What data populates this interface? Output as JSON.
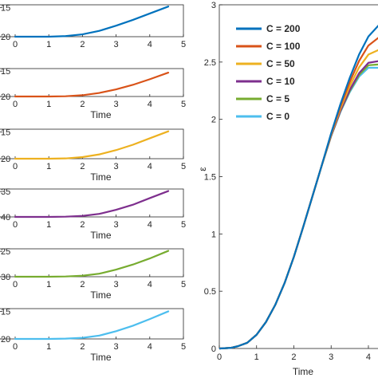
{
  "chart_data": [
    {
      "type": "line",
      "xlabel": "",
      "ylabel": "",
      "xlim": [
        0,
        5
      ],
      "x_ticks": [
        "0",
        "1",
        "2",
        "3",
        "4",
        "5"
      ],
      "y_ticks": [
        "20",
        "15"
      ],
      "ylim": [
        -20,
        -14.5
      ],
      "color": "#0072BD",
      "series": [
        {
          "x": [
            0,
            1,
            1.5,
            2,
            2.5,
            3,
            3.5,
            4,
            4.55
          ],
          "y": [
            -20,
            -20,
            -19.9,
            -19.6,
            -19.0,
            -18.1,
            -17.1,
            -16.0,
            -14.8
          ]
        }
      ]
    },
    {
      "type": "line",
      "xlabel": "Time",
      "ylabel": "",
      "xlim": [
        0,
        5
      ],
      "x_ticks": [
        "0",
        "1",
        "2",
        "3",
        "4",
        "5"
      ],
      "y_ticks": [
        "20",
        "15"
      ],
      "ylim": [
        -20,
        -14.5
      ],
      "color": "#D95319",
      "series": [
        {
          "x": [
            0,
            1,
            1.5,
            2,
            2.5,
            3,
            3.5,
            4,
            4.55
          ],
          "y": [
            -20,
            -20,
            -19.95,
            -19.75,
            -19.3,
            -18.6,
            -17.7,
            -16.6,
            -15.3
          ]
        }
      ]
    },
    {
      "type": "line",
      "xlabel": "Time",
      "ylabel": "",
      "xlim": [
        0,
        5
      ],
      "x_ticks": [
        "0",
        "1",
        "2",
        "3",
        "4",
        "5"
      ],
      "y_ticks": [
        "20",
        "15"
      ],
      "ylim": [
        -20,
        -14.5
      ],
      "color": "#EDB120",
      "series": [
        {
          "x": [
            0,
            1,
            1.5,
            2,
            2.5,
            3,
            3.5,
            4,
            4.55
          ],
          "y": [
            -20,
            -20,
            -19.95,
            -19.7,
            -19.2,
            -18.4,
            -17.4,
            -16.2,
            -14.9
          ]
        }
      ]
    },
    {
      "type": "line",
      "xlabel": "Time",
      "ylabel": "",
      "xlim": [
        0,
        5
      ],
      "x_ticks": [
        "0",
        "1",
        "2",
        "3",
        "4",
        "5"
      ],
      "y_ticks": [
        "40",
        "35"
      ],
      "ylim": [
        -40,
        -34.5
      ],
      "color": "#7E2F8E",
      "series": [
        {
          "x": [
            0,
            1,
            1.5,
            2,
            2.5,
            3,
            3.5,
            4,
            4.55
          ],
          "y": [
            -40,
            -40,
            -39.95,
            -39.8,
            -39.4,
            -38.6,
            -37.6,
            -36.3,
            -34.9
          ]
        }
      ]
    },
    {
      "type": "line",
      "xlabel": "Time",
      "ylabel": "",
      "xlim": [
        0,
        5
      ],
      "x_ticks": [
        "0",
        "1",
        "2",
        "3",
        "4",
        "5"
      ],
      "y_ticks": [
        "30",
        "25"
      ],
      "ylim": [
        -30,
        -24.5
      ],
      "color": "#77AC30",
      "series": [
        {
          "x": [
            0,
            1,
            1.5,
            2,
            2.5,
            3,
            3.5,
            4,
            4.55
          ],
          "y": [
            -30,
            -30,
            -29.95,
            -29.8,
            -29.4,
            -28.6,
            -27.6,
            -26.4,
            -24.9
          ]
        }
      ]
    },
    {
      "type": "line",
      "xlabel": "Time",
      "ylabel": "",
      "xlim": [
        0,
        5
      ],
      "x_ticks": [
        "0",
        "1",
        "2",
        "3",
        "4",
        "5"
      ],
      "y_ticks": [
        "20",
        "15"
      ],
      "ylim": [
        -20,
        -14.5
      ],
      "color": "#4DBEEE",
      "series": [
        {
          "x": [
            0,
            1,
            1.5,
            2,
            2.5,
            3,
            3.5,
            4,
            4.55
          ],
          "y": [
            -20,
            -20,
            -19.95,
            -19.8,
            -19.4,
            -18.6,
            -17.6,
            -16.4,
            -15.0
          ]
        }
      ]
    },
    {
      "type": "line",
      "xlabel": "Time",
      "ylabel": "ε",
      "xlim": [
        0,
        4.3
      ],
      "ylim": [
        0,
        3
      ],
      "x_ticks": [
        "0",
        "1",
        "2",
        "3",
        "4"
      ],
      "y_ticks": [
        "0",
        "0.5",
        "1",
        "1.5",
        "2",
        "2.5",
        "3"
      ],
      "legend_position": "top-left",
      "series": [
        {
          "name": "C = 200",
          "color": "#0072BD",
          "final": 2.83
        },
        {
          "name": "C = 100",
          "color": "#D95319",
          "final": 2.72
        },
        {
          "name": "C = 50",
          "color": "#EDB120",
          "final": 2.61
        },
        {
          "name": "C = 10",
          "color": "#7E2F8E",
          "final": 2.51
        },
        {
          "name": "C = 5",
          "color": "#77AC30",
          "final": 2.48
        },
        {
          "name": "C = 0",
          "color": "#4DBEEE",
          "final": 2.45
        }
      ],
      "shared_curve": {
        "x": [
          0,
          0.3,
          0.5,
          0.75,
          1,
          1.25,
          1.5,
          1.75,
          2,
          2.25,
          2.5,
          2.75,
          3,
          3.25,
          3.5,
          3.75,
          4,
          4.3
        ],
        "y": [
          0,
          0.005,
          0.02,
          0.05,
          0.12,
          0.23,
          0.38,
          0.57,
          0.8,
          1.06,
          1.33,
          1.6,
          1.87,
          2.11,
          2.32,
          2.5,
          2.63,
          2.7
        ]
      }
    }
  ]
}
